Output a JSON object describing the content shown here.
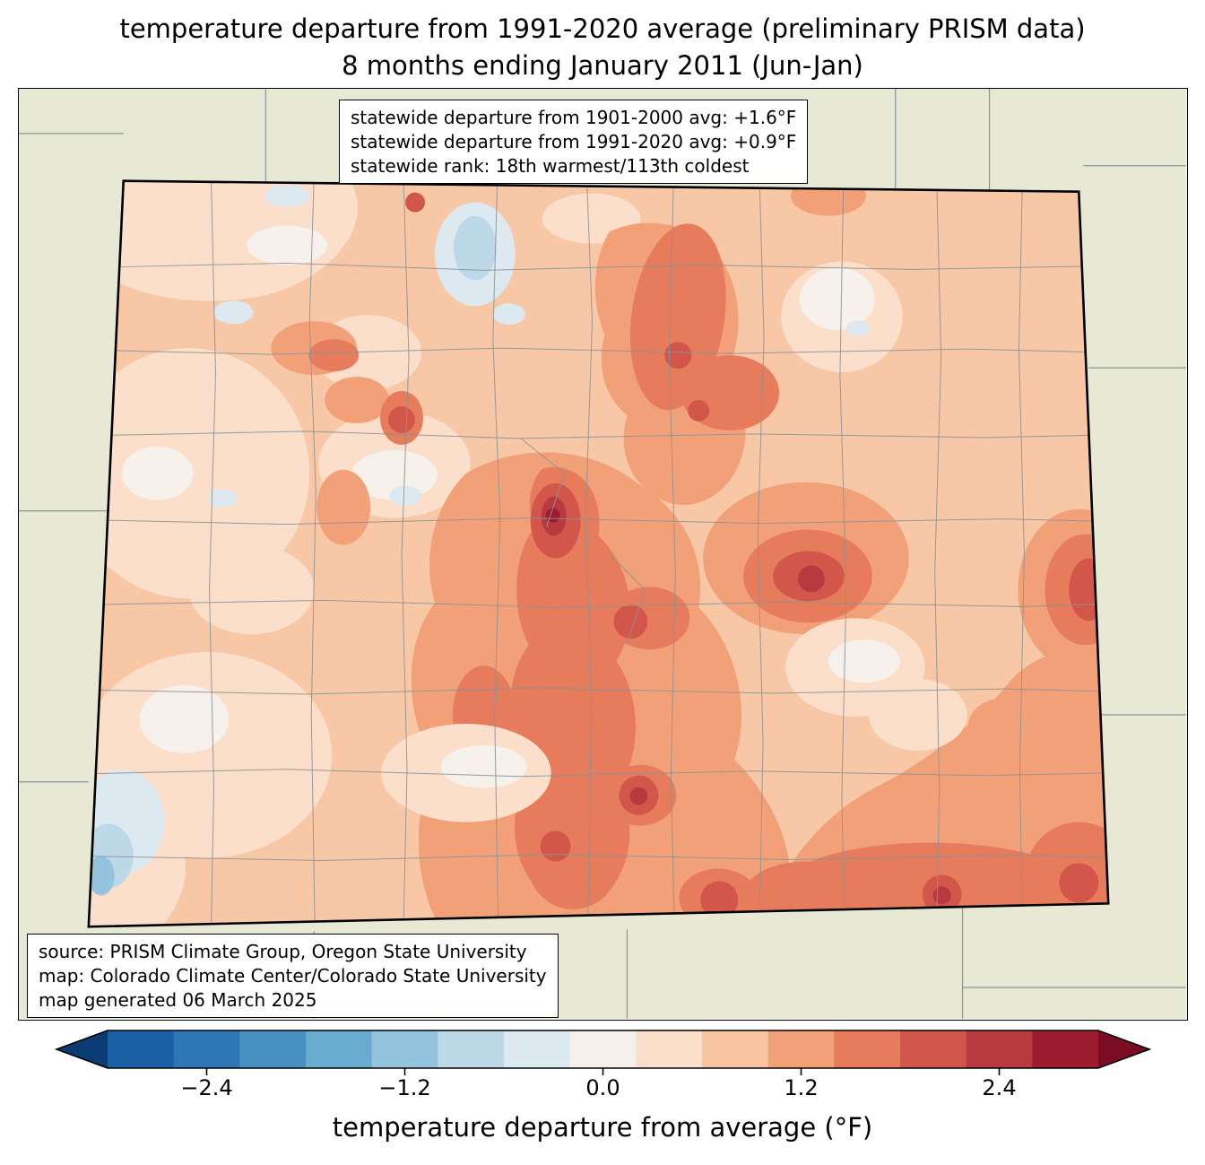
{
  "title": {
    "line1": "temperature departure from 1991-2020 average (preliminary PRISM data)",
    "line2": "8 months ending January 2011 (Jun-Jan)"
  },
  "stats_box": {
    "line1": "statewide departure from 1901-2000 avg: +1.6°F",
    "line2": "statewide departure from 1991-2020 avg: +0.9°F",
    "line3": "statewide rank: 18th warmest/113th coldest"
  },
  "credits_box": {
    "line1": "source: PRISM Climate Group, Oregon State University",
    "line2": "map: Colorado Climate Center/Colorado State University",
    "line3": "map generated 06 March 2025"
  },
  "colorbar": {
    "label": "temperature departure from average (°F)",
    "ticks": [
      "−2.4",
      "−1.2",
      "0.0",
      "1.2",
      "2.4"
    ],
    "tick_values": [
      -2.4,
      -1.2,
      0.0,
      1.2,
      2.4
    ],
    "range": [
      -3.0,
      3.0
    ],
    "segment_colors": [
      "#1a5fa4",
      "#2d76b5",
      "#4790c2",
      "#6aabd0",
      "#94c4dd",
      "#bcd8e9",
      "#dde9f1",
      "#f5f1ea",
      "#fbdfca",
      "#f8c3a0",
      "#f2a078",
      "#e67c5b",
      "#d3564a",
      "#b93a3e",
      "#9c1b2f"
    ],
    "under_arrow_color": "#0a3b72",
    "over_arrow_color": "#7a0c23",
    "outline_color": "#000000"
  },
  "map": {
    "region": "Colorado",
    "background_color": "#e8e9d4",
    "county_line_color": "#8a9398",
    "state_border_color": "#000000",
    "palette": {
      "base": "#f7c7a6",
      "pale": "#fbdfca",
      "white": "#f6f1ea",
      "mediumOrange": "#f2a078",
      "darkOrange": "#e67c5b",
      "red": "#d3564a",
      "darkRed": "#b93a3e",
      "deepRed": "#9c1b2f",
      "paleBlue": "#dde9f1",
      "lightBlue": "#bcd8e9",
      "midBlue": "#94c4dd"
    }
  }
}
